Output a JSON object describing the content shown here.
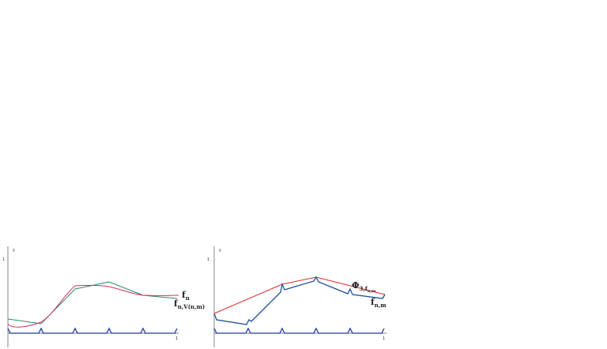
{
  "left_panel": {
    "y_label": "y",
    "y_tick": "1",
    "x_tick": "1",
    "labels": [
      {
        "main": "f",
        "sub": "n"
      },
      {
        "main": "f",
        "sub": "n,V(n,m)"
      }
    ]
  },
  "right_panel": {
    "y_label": "y",
    "y_tick": "1",
    "x_tick": "1",
    "labels": [
      {
        "main": "Φ",
        "sub": "3,f"
      },
      {
        "main": "f",
        "sub": "n,m"
      }
    ],
    "label_extra": "n,m"
  }
}
